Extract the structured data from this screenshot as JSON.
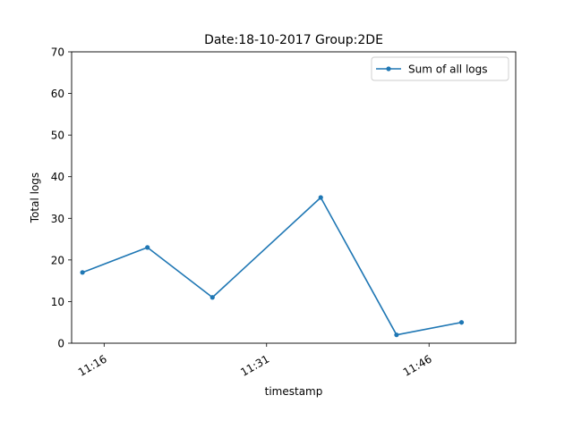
{
  "chart_data": {
    "type": "line",
    "title": "Date:18-10-2017  Group:2DE",
    "xlabel": "timestamp",
    "ylabel": "Total logs",
    "ylim": [
      0,
      70
    ],
    "xlim": [
      "11:13",
      "11:54"
    ],
    "yticks": [
      0,
      10,
      20,
      30,
      40,
      50,
      60,
      70
    ],
    "xticks": [
      {
        "value": "11:16",
        "label": "11:16"
      },
      {
        "value": "11:31",
        "label": "11:31"
      },
      {
        "value": "11:46",
        "label": "11:46"
      }
    ],
    "grid": false,
    "legend_position": "top-right",
    "series": [
      {
        "name": "Sum of all logs",
        "color": "#1f77b4",
        "marker": "point",
        "x": [
          "11:14",
          "11:20",
          "11:26",
          "11:36",
          "11:43",
          "11:49"
        ],
        "y": [
          17,
          23,
          11,
          35,
          2,
          5
        ]
      }
    ]
  }
}
